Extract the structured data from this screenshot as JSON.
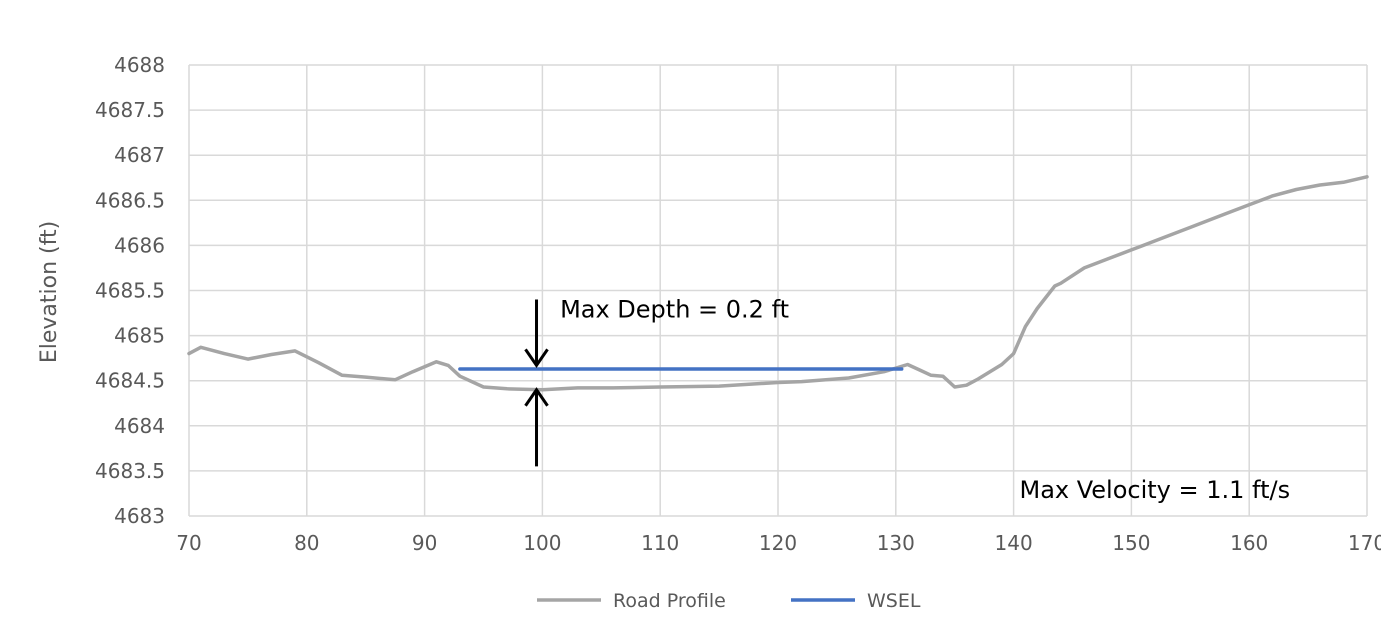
{
  "chart_data": {
    "type": "line",
    "title": "",
    "xlabel": "",
    "ylabel": "Elevation (ft)",
    "xlim": [
      70,
      170
    ],
    "ylim": [
      4683,
      4688
    ],
    "grid": true,
    "x_ticks": [
      70,
      80,
      90,
      100,
      110,
      120,
      130,
      140,
      150,
      160,
      170
    ],
    "y_ticks": [
      4683,
      4683.5,
      4684,
      4684.5,
      4685,
      4685.5,
      4686,
      4686.5,
      4687,
      4687.5,
      4688
    ],
    "x_tick_labels": [
      "70",
      "80",
      "90",
      "100",
      "110",
      "120",
      "130",
      "140",
      "150",
      "160",
      "170"
    ],
    "y_tick_labels": [
      "4683",
      "4683.5",
      "4684",
      "4684.5",
      "4685",
      "4685.5",
      "4686",
      "4686.5",
      "4687",
      "4687.5",
      "4688"
    ],
    "legend_position": "bottom",
    "series": [
      {
        "name": "Road Profile",
        "color": "#A5A5A5",
        "x": [
          70,
          71,
          73,
          75,
          77,
          79,
          81,
          83,
          85,
          87.5,
          89,
          91,
          92,
          93,
          95,
          97,
          100,
          103,
          106,
          110,
          115,
          120,
          122,
          126,
          129,
          131,
          132,
          133,
          134,
          135,
          136,
          137,
          139,
          140,
          141,
          142,
          143.5,
          144,
          146,
          147,
          148,
          150,
          152,
          155,
          158,
          160,
          162,
          164,
          166,
          168,
          170
        ],
        "y": [
          4684.8,
          4684.87,
          4684.8,
          4684.74,
          4684.79,
          4684.83,
          4684.7,
          4684.56,
          4684.54,
          4684.51,
          4684.6,
          4684.71,
          4684.67,
          4684.55,
          4684.43,
          4684.41,
          4684.4,
          4684.42,
          4684.42,
          4684.43,
          4684.44,
          4684.48,
          4684.49,
          4684.53,
          4684.6,
          4684.68,
          4684.62,
          4684.56,
          4684.55,
          4684.43,
          4684.45,
          4684.52,
          4684.68,
          4684.8,
          4685.1,
          4685.3,
          4685.55,
          4685.58,
          4685.75,
          4685.8,
          4685.85,
          4685.95,
          4686.05,
          4686.2,
          4686.35,
          4686.45,
          4686.55,
          4686.62,
          4686.67,
          4686.7,
          4686.76
        ]
      },
      {
        "name": "WSEL",
        "color": "#4472C4",
        "x": [
          93,
          130.5
        ],
        "y": [
          4684.63,
          4684.63
        ]
      }
    ],
    "annotations": [
      {
        "text": "Max Depth = 0.2 ft",
        "x": 101.5,
        "y": 4685.2
      },
      {
        "text": "Max Velocity = 1.1 ft/s",
        "x": 140.5,
        "y": 4683.2
      }
    ],
    "depth_arrows": {
      "x": 99.5,
      "top": {
        "from_y": 4685.4,
        "to_y": 4684.67
      },
      "bottom": {
        "from_y": 4683.55,
        "to_y": 4684.4
      }
    }
  },
  "legend": {
    "items": [
      {
        "label": "Road Profile",
        "color": "#A5A5A5"
      },
      {
        "label": "WSEL",
        "color": "#4472C4"
      }
    ]
  }
}
